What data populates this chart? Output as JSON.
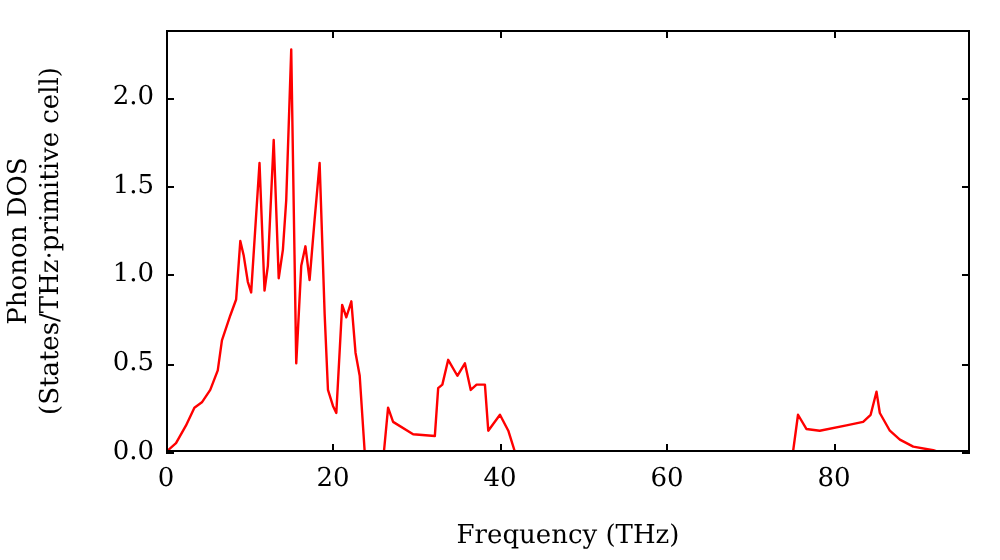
{
  "chart_data": {
    "type": "line",
    "xlabel": "Frequency (THz)",
    "ylabel": "Phonon DOS\n(States/THz·primitive cell)",
    "xlim": [
      0,
      96.3
    ],
    "ylim": [
      0,
      2.38
    ],
    "xticks": [
      0,
      20,
      40,
      60,
      80
    ],
    "yticks": [
      {
        "value": 0,
        "label": "0.0"
      },
      0.5,
      {
        "value": 1,
        "label": "1.0"
      },
      1.5,
      {
        "value": 2,
        "label": "2.0"
      }
    ],
    "grid": false,
    "legend": false,
    "series": [
      {
        "color": "#ff0000",
        "x": [
          0,
          1.2,
          2.4,
          3.4,
          4.3,
          5.3,
          6.2,
          6.7,
          7.7,
          8.4,
          8.9,
          9.3,
          9.8,
          10.2,
          11.2,
          11.8,
          12.2,
          12.9,
          13.5,
          14.0,
          14.4,
          15.0,
          15.6,
          16.2,
          16.7,
          17.2,
          17.8,
          18.4,
          19.0,
          19.4,
          20.0,
          20.4,
          21.1,
          21.6,
          22.2,
          22.7,
          23.2,
          23.8,
          26.1,
          26.6,
          27.2,
          29.6,
          32.2,
          32.6,
          33.1,
          33.8,
          34.9,
          35.8,
          36.5,
          37.2,
          38.2,
          38.6,
          40.0,
          41.0,
          41.8,
          75.1,
          75.7,
          76.7,
          78.3,
          81.5,
          83.5,
          84.4,
          85.1,
          85.5,
          86.7,
          87.9,
          89.5,
          91.9,
          92.5
        ],
        "values": [
          0,
          0.05,
          0.15,
          0.25,
          0.28,
          0.35,
          0.46,
          0.63,
          0.77,
          0.86,
          1.19,
          1.11,
          0.96,
          0.9,
          1.63,
          0.91,
          1.05,
          1.76,
          0.98,
          1.14,
          1.42,
          2.27,
          0.5,
          1.05,
          1.16,
          0.97,
          1.31,
          1.63,
          0.78,
          0.35,
          0.26,
          0.22,
          0.83,
          0.76,
          0.85,
          0.56,
          0.43,
          0,
          0,
          0.25,
          0.17,
          0.1,
          0.09,
          0.36,
          0.38,
          0.52,
          0.43,
          0.5,
          0.35,
          0.38,
          0.38,
          0.12,
          0.21,
          0.12,
          0,
          0,
          0.21,
          0.13,
          0.12,
          0.15,
          0.17,
          0.21,
          0.34,
          0.22,
          0.12,
          0.07,
          0.03,
          0.01,
          0
        ]
      }
    ]
  }
}
